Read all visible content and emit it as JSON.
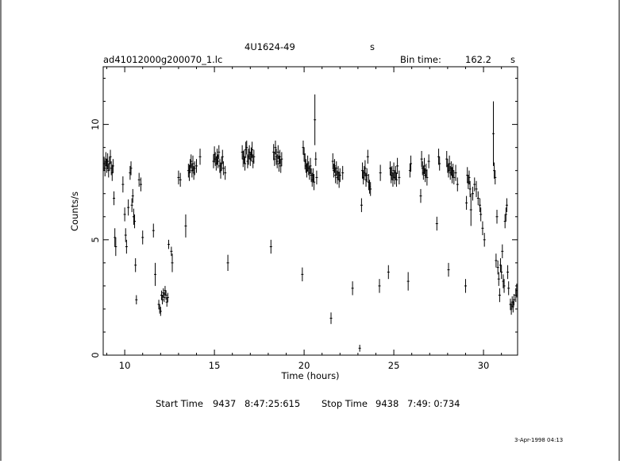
{
  "header": {
    "object": "4U1624-49",
    "object_unit": "s",
    "file": "ad41012000g200070_1.lc",
    "bin_label": "Bin time:",
    "bin_value": "162.2",
    "bin_unit": "s"
  },
  "footer": {
    "start_label": "Start Time",
    "start_day": "9437",
    "start_time": "8:47:25:615",
    "stop_label": "Stop Time",
    "stop_day": "9438",
    "stop_time": "7:49: 0:734",
    "date_stamp": "3-Apr-1998 04:13"
  },
  "chart_data": {
    "type": "scatter",
    "xlabel": "Time (hours)",
    "ylabel": "Counts/s",
    "xlim": [
      8.8,
      31.9
    ],
    "ylim": [
      0,
      12.5
    ],
    "xticks": [
      10,
      15,
      20,
      25,
      30
    ],
    "yticks": [
      0,
      5,
      10
    ],
    "grid": false,
    "points": [
      [
        8.85,
        8.3,
        0.3
      ],
      [
        8.9,
        8.1,
        0.35
      ],
      [
        8.95,
        8.5,
        0.3
      ],
      [
        9.0,
        8.2,
        0.3
      ],
      [
        9.05,
        8.4,
        0.35
      ],
      [
        9.1,
        8.0,
        0.3
      ],
      [
        9.15,
        8.3,
        0.3
      ],
      [
        9.2,
        8.6,
        0.3
      ],
      [
        9.25,
        8.1,
        0.3
      ],
      [
        9.3,
        7.9,
        0.35
      ],
      [
        9.35,
        8.2,
        0.3
      ],
      [
        9.4,
        6.8,
        0.3
      ],
      [
        9.45,
        5.1,
        0.4
      ],
      [
        9.5,
        4.7,
        0.4
      ],
      [
        9.9,
        7.4,
        0.35
      ],
      [
        10.0,
        6.1,
        0.3
      ],
      [
        10.05,
        5.2,
        0.3
      ],
      [
        10.1,
        4.7,
        0.3
      ],
      [
        10.2,
        6.4,
        0.35
      ],
      [
        10.3,
        7.9,
        0.3
      ],
      [
        10.35,
        8.1,
        0.3
      ],
      [
        10.4,
        6.5,
        0.3
      ],
      [
        10.45,
        6.9,
        0.3
      ],
      [
        10.5,
        6.0,
        0.35
      ],
      [
        10.55,
        5.8,
        0.3
      ],
      [
        10.6,
        3.9,
        0.3
      ],
      [
        10.65,
        2.4,
        0.2
      ],
      [
        10.8,
        7.6,
        0.3
      ],
      [
        10.9,
        7.4,
        0.3
      ],
      [
        11.0,
        5.1,
        0.3
      ],
      [
        11.6,
        5.4,
        0.3
      ],
      [
        11.7,
        3.5,
        0.5
      ],
      [
        11.9,
        2.2,
        0.2
      ],
      [
        11.95,
        2.0,
        0.2
      ],
      [
        12.0,
        1.9,
        0.2
      ],
      [
        12.05,
        2.6,
        0.2
      ],
      [
        12.1,
        2.4,
        0.2
      ],
      [
        12.15,
        2.7,
        0.2
      ],
      [
        12.2,
        2.5,
        0.2
      ],
      [
        12.25,
        2.8,
        0.2
      ],
      [
        12.3,
        2.6,
        0.2
      ],
      [
        12.35,
        2.3,
        0.2
      ],
      [
        12.4,
        2.5,
        0.2
      ],
      [
        12.45,
        4.8,
        0.2
      ],
      [
        12.6,
        4.5,
        0.2
      ],
      [
        12.65,
        4.0,
        0.4
      ],
      [
        13.0,
        7.7,
        0.3
      ],
      [
        13.1,
        7.6,
        0.3
      ],
      [
        13.4,
        5.6,
        0.5
      ],
      [
        13.55,
        8.0,
        0.3
      ],
      [
        13.6,
        7.9,
        0.35
      ],
      [
        13.65,
        8.2,
        0.3
      ],
      [
        13.7,
        8.4,
        0.3
      ],
      [
        13.75,
        8.0,
        0.3
      ],
      [
        13.8,
        8.3,
        0.35
      ],
      [
        13.85,
        7.9,
        0.3
      ],
      [
        13.9,
        8.1,
        0.3
      ],
      [
        14.0,
        8.2,
        0.3
      ],
      [
        14.2,
        8.6,
        0.35
      ],
      [
        14.95,
        8.4,
        0.3
      ],
      [
        15.0,
        8.7,
        0.35
      ],
      [
        15.05,
        8.5,
        0.3
      ],
      [
        15.1,
        8.3,
        0.3
      ],
      [
        15.15,
        8.6,
        0.35
      ],
      [
        15.2,
        8.4,
        0.3
      ],
      [
        15.25,
        8.8,
        0.3
      ],
      [
        15.3,
        8.2,
        0.3
      ],
      [
        15.35,
        8.0,
        0.35
      ],
      [
        15.4,
        8.3,
        0.3
      ],
      [
        15.45,
        8.6,
        0.3
      ],
      [
        15.5,
        8.1,
        0.3
      ],
      [
        15.6,
        7.9,
        0.3
      ],
      [
        15.75,
        4.0,
        0.35
      ],
      [
        16.55,
        8.8,
        0.3
      ],
      [
        16.6,
        8.5,
        0.35
      ],
      [
        16.65,
        8.6,
        0.3
      ],
      [
        16.7,
        8.3,
        0.3
      ],
      [
        16.75,
        8.9,
        0.35
      ],
      [
        16.8,
        9.0,
        0.3
      ],
      [
        16.85,
        8.4,
        0.3
      ],
      [
        16.9,
        8.6,
        0.35
      ],
      [
        16.95,
        8.8,
        0.3
      ],
      [
        17.0,
        8.5,
        0.3
      ],
      [
        17.05,
        8.7,
        0.3
      ],
      [
        17.1,
        8.9,
        0.35
      ],
      [
        17.15,
        8.4,
        0.3
      ],
      [
        17.2,
        8.6,
        0.3
      ],
      [
        18.15,
        4.7,
        0.3
      ],
      [
        18.3,
        8.8,
        0.35
      ],
      [
        18.35,
        8.5,
        0.3
      ],
      [
        18.4,
        9.0,
        0.3
      ],
      [
        18.45,
        8.6,
        0.35
      ],
      [
        18.5,
        8.4,
        0.3
      ],
      [
        18.55,
        8.8,
        0.3
      ],
      [
        18.6,
        8.3,
        0.35
      ],
      [
        18.65,
        8.6,
        0.3
      ],
      [
        18.7,
        8.2,
        0.3
      ],
      [
        18.75,
        8.5,
        0.3
      ],
      [
        19.9,
        3.5,
        0.3
      ],
      [
        19.95,
        9.0,
        0.3
      ],
      [
        20.0,
        8.7,
        0.3
      ],
      [
        20.05,
        8.4,
        0.35
      ],
      [
        20.1,
        8.2,
        0.3
      ],
      [
        20.15,
        8.0,
        0.3
      ],
      [
        20.2,
        8.3,
        0.35
      ],
      [
        20.25,
        8.1,
        0.3
      ],
      [
        20.3,
        7.9,
        0.3
      ],
      [
        20.35,
        8.2,
        0.35
      ],
      [
        20.4,
        7.8,
        0.3
      ],
      [
        20.45,
        7.6,
        0.3
      ],
      [
        20.5,
        7.8,
        0.3
      ],
      [
        20.55,
        7.5,
        0.35
      ],
      [
        20.6,
        10.2,
        1.1
      ],
      [
        20.65,
        8.5,
        0.3
      ],
      [
        20.7,
        7.7,
        0.3
      ],
      [
        21.5,
        1.6,
        0.25
      ],
      [
        21.6,
        8.4,
        0.35
      ],
      [
        21.65,
        8.0,
        0.3
      ],
      [
        21.7,
        8.2,
        0.3
      ],
      [
        21.75,
        7.8,
        0.35
      ],
      [
        21.8,
        8.1,
        0.3
      ],
      [
        21.85,
        7.7,
        0.3
      ],
      [
        21.9,
        7.9,
        0.3
      ],
      [
        21.95,
        7.6,
        0.35
      ],
      [
        22.0,
        7.8,
        0.3
      ],
      [
        22.15,
        7.9,
        0.3
      ],
      [
        22.7,
        2.9,
        0.3
      ],
      [
        23.1,
        0.3,
        0.15
      ],
      [
        23.2,
        6.5,
        0.3
      ],
      [
        23.25,
        8.0,
        0.35
      ],
      [
        23.3,
        7.7,
        0.3
      ],
      [
        23.35,
        7.9,
        0.3
      ],
      [
        23.4,
        8.1,
        0.35
      ],
      [
        23.45,
        7.6,
        0.3
      ],
      [
        23.5,
        7.8,
        0.3
      ],
      [
        23.55,
        8.6,
        0.3
      ],
      [
        23.6,
        7.5,
        0.35
      ],
      [
        23.65,
        7.3,
        0.3
      ],
      [
        23.7,
        7.2,
        0.3
      ],
      [
        24.2,
        3.0,
        0.3
      ],
      [
        24.25,
        7.9,
        0.35
      ],
      [
        24.7,
        3.6,
        0.3
      ],
      [
        24.8,
        8.1,
        0.3
      ],
      [
        24.85,
        7.8,
        0.35
      ],
      [
        24.9,
        7.9,
        0.3
      ],
      [
        24.95,
        7.6,
        0.3
      ],
      [
        25.0,
        8.0,
        0.35
      ],
      [
        25.05,
        7.7,
        0.3
      ],
      [
        25.1,
        7.9,
        0.3
      ],
      [
        25.15,
        7.6,
        0.3
      ],
      [
        25.2,
        8.2,
        0.35
      ],
      [
        25.3,
        7.7,
        0.3
      ],
      [
        25.8,
        3.2,
        0.4
      ],
      [
        25.9,
        8.0,
        0.3
      ],
      [
        25.95,
        8.3,
        0.35
      ],
      [
        26.5,
        6.9,
        0.3
      ],
      [
        26.55,
        8.5,
        0.35
      ],
      [
        26.6,
        8.1,
        0.3
      ],
      [
        26.65,
        7.9,
        0.3
      ],
      [
        26.7,
        8.2,
        0.35
      ],
      [
        26.75,
        7.8,
        0.3
      ],
      [
        26.8,
        8.0,
        0.3
      ],
      [
        26.85,
        7.7,
        0.35
      ],
      [
        26.95,
        8.4,
        0.3
      ],
      [
        27.4,
        5.7,
        0.3
      ],
      [
        27.5,
        8.6,
        0.35
      ],
      [
        27.55,
        8.3,
        0.3
      ],
      [
        28.05,
        3.7,
        0.3
      ],
      [
        27.95,
        8.5,
        0.35
      ],
      [
        28.0,
        8.2,
        0.3
      ],
      [
        28.05,
        8.0,
        0.3
      ],
      [
        28.1,
        8.3,
        0.35
      ],
      [
        28.15,
        7.9,
        0.3
      ],
      [
        28.2,
        8.1,
        0.3
      ],
      [
        28.25,
        7.8,
        0.35
      ],
      [
        28.3,
        8.0,
        0.3
      ],
      [
        28.35,
        7.7,
        0.3
      ],
      [
        28.45,
        7.9,
        0.35
      ],
      [
        28.55,
        7.4,
        0.3
      ],
      [
        29.0,
        3.0,
        0.3
      ],
      [
        29.05,
        6.6,
        0.3
      ],
      [
        29.1,
        7.8,
        0.35
      ],
      [
        29.15,
        7.5,
        0.3
      ],
      [
        29.2,
        7.7,
        0.3
      ],
      [
        29.25,
        7.2,
        0.35
      ],
      [
        29.3,
        6.3,
        0.7
      ],
      [
        29.4,
        7.0,
        0.3
      ],
      [
        29.5,
        7.4,
        0.3
      ],
      [
        29.6,
        7.2,
        0.35
      ],
      [
        29.7,
        6.8,
        0.3
      ],
      [
        29.8,
        6.5,
        0.3
      ],
      [
        29.85,
        6.1,
        0.3
      ],
      [
        29.95,
        5.5,
        0.3
      ],
      [
        30.05,
        5.0,
        0.3
      ],
      [
        30.55,
        9.6,
        1.4
      ],
      [
        30.6,
        8.0,
        0.35
      ],
      [
        30.65,
        7.7,
        0.3
      ],
      [
        30.7,
        4.1,
        0.3
      ],
      [
        30.75,
        6.0,
        0.3
      ],
      [
        30.8,
        3.8,
        0.3
      ],
      [
        30.85,
        3.3,
        0.3
      ],
      [
        30.9,
        2.6,
        0.3
      ],
      [
        30.95,
        3.9,
        0.3
      ],
      [
        31.0,
        3.6,
        0.3
      ],
      [
        31.05,
        4.5,
        0.3
      ],
      [
        31.1,
        3.2,
        0.3
      ],
      [
        31.15,
        3.0,
        0.3
      ],
      [
        31.2,
        5.8,
        0.3
      ],
      [
        31.25,
        6.1,
        0.3
      ],
      [
        31.3,
        6.5,
        0.3
      ],
      [
        31.35,
        3.6,
        0.3
      ],
      [
        31.4,
        2.9,
        0.3
      ],
      [
        31.5,
        2.2,
        0.25
      ],
      [
        31.55,
        2.0,
        0.25
      ],
      [
        31.6,
        2.3,
        0.25
      ],
      [
        31.65,
        2.1,
        0.25
      ],
      [
        31.7,
        2.4,
        0.25
      ],
      [
        31.8,
        2.6,
        0.3
      ],
      [
        31.85,
        2.8,
        0.3
      ]
    ]
  }
}
